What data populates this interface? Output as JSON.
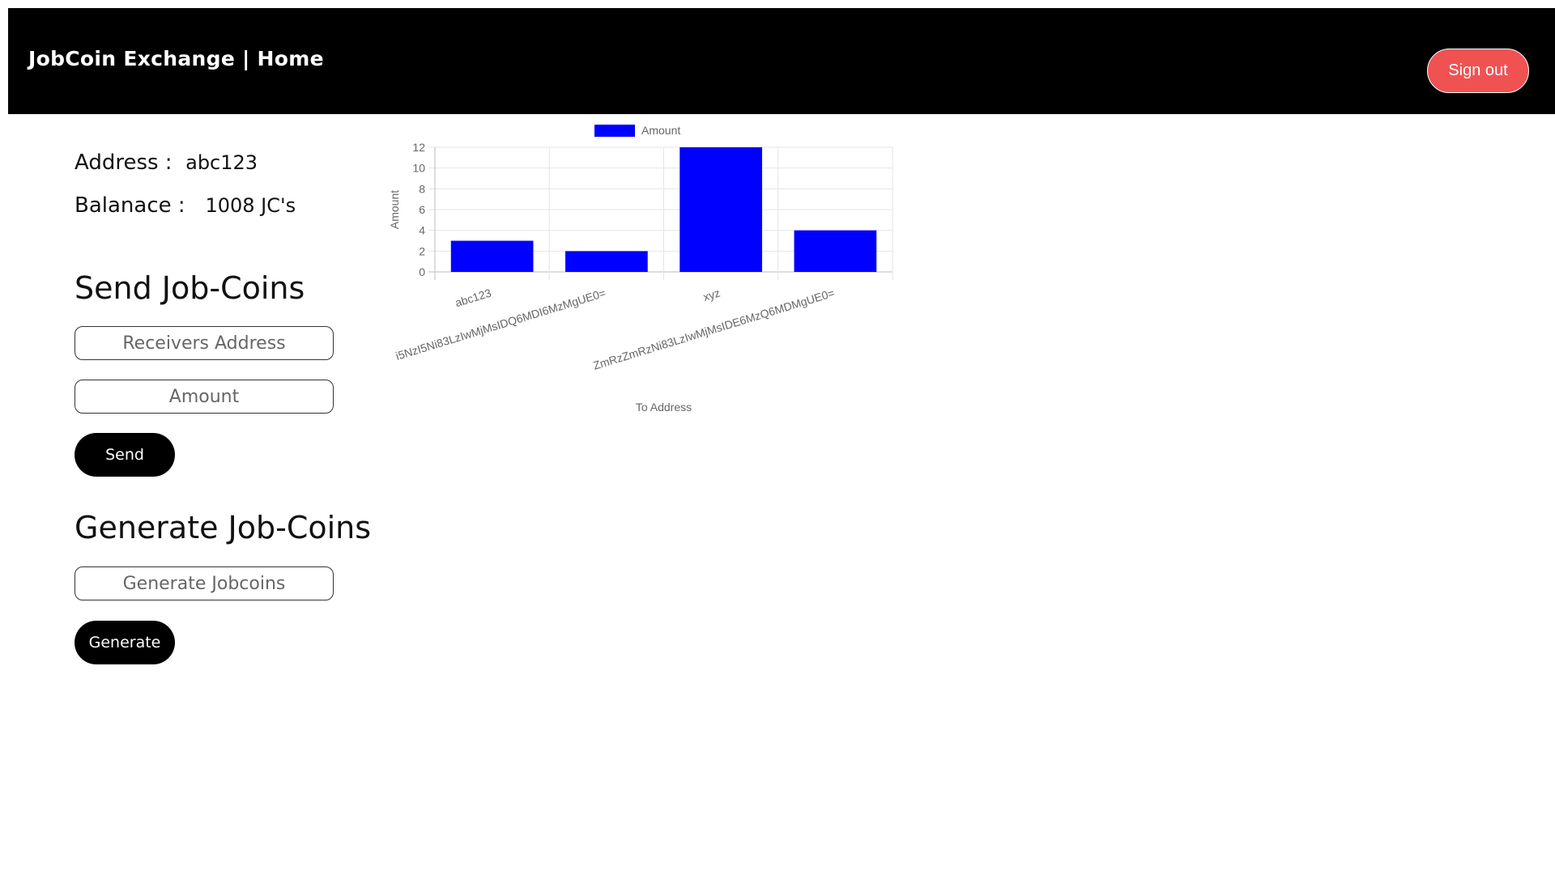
{
  "header": {
    "title": "JobCoin Exchange | Home",
    "signout_label": "Sign out"
  },
  "account": {
    "address_label": "Address :",
    "address_value": "abc123",
    "balance_label": "Balanace :",
    "balance_value": "1008 JC's"
  },
  "send": {
    "title": "Send Job-Coins",
    "receiver_placeholder": "Receivers Address",
    "amount_placeholder": "Amount",
    "button_label": "Send"
  },
  "generate": {
    "title": "Generate Job-Coins",
    "input_placeholder": "Generate Jobcoins",
    "button_label": "Generate"
  },
  "colors": {
    "header_bg": "#000000",
    "signout_bg": "#f05252",
    "bar_color": "#0000ff"
  },
  "chart_data": {
    "type": "bar",
    "title": "",
    "legend_label": "Amount",
    "legend_position": "top",
    "categories": [
      "abc123",
      "i5NzI5Ni83LzIwMjMsIDQ6MDI6MzMgUE0=",
      "xyz",
      "ZmRzZmRzNi83LzIwMjMsIDE6MzQ6MDMgUE0="
    ],
    "values": [
      3,
      2,
      12,
      4
    ],
    "xlabel": "To Address",
    "ylabel": "Amount",
    "ylim": [
      0,
      12
    ],
    "yticks": [
      "0",
      "2",
      "4",
      "6",
      "8",
      "10",
      "12"
    ],
    "grid": true
  }
}
